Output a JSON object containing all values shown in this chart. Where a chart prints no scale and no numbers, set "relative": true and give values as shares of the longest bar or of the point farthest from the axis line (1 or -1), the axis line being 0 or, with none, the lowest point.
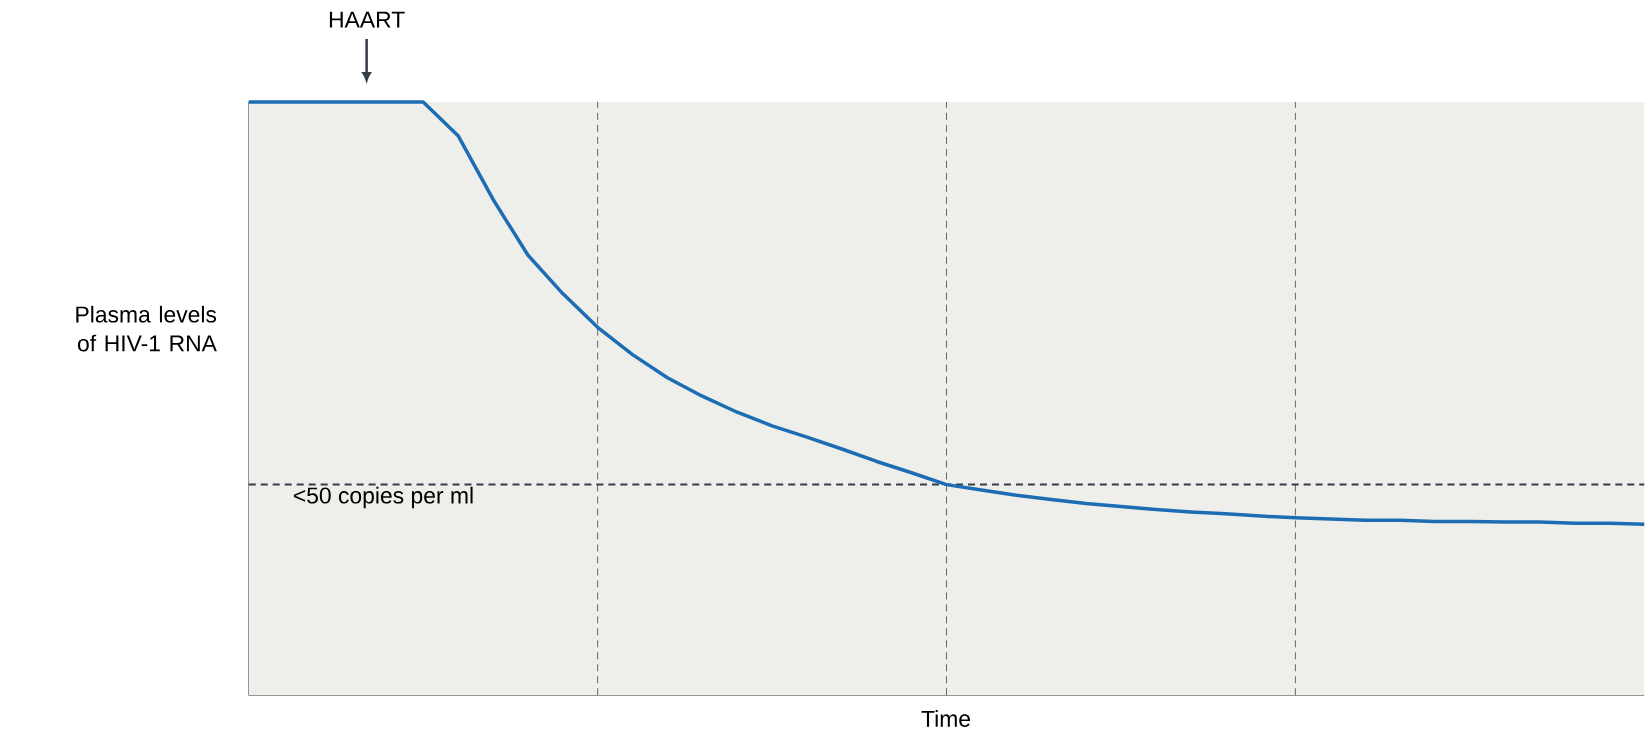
{
  "chart_data": {
    "type": "line",
    "relative": true,
    "xlabel": "Time",
    "ylabel": "Plasma levels of HIV-1 RNA",
    "categories": [
      null,
      null,
      null,
      null,
      null,
      null,
      null,
      null,
      null,
      null,
      null,
      null,
      null,
      null,
      null,
      null,
      null,
      null,
      null,
      null,
      null,
      null,
      null,
      null,
      null,
      null,
      null,
      null,
      null,
      null,
      null,
      null,
      null,
      null,
      null,
      null,
      null,
      null,
      null,
      null,
      null
    ],
    "series": [
      {
        "color": "#1c6db4",
        "values": [
          1,
          1,
          1,
          1,
          1,
          1,
          0.943,
          0.836,
          0.742,
          0.677,
          0.62,
          0.574,
          0.535,
          0.504,
          0.477,
          0.454,
          0.435,
          0.415,
          0.394,
          0.375,
          0.355,
          0.346,
          0.337,
          0.33,
          0.323,
          0.318,
          0.313,
          0.309,
          0.306,
          0.302,
          0.299,
          0.297,
          0.295,
          0.295,
          0.293,
          0.293,
          0.292,
          0.292,
          0.29,
          0.29,
          0.288
        ]
      }
    ],
    "ref_lines": [
      {
        "axis": "y",
        "value": 0.355,
        "label": "<50 copies per ml",
        "color": "#333d47",
        "line_style": "dashed"
      }
    ],
    "grid": "x",
    "annotations": [
      "HAART"
    ],
    "marker": "none",
    "line_style": "solid"
  }
}
